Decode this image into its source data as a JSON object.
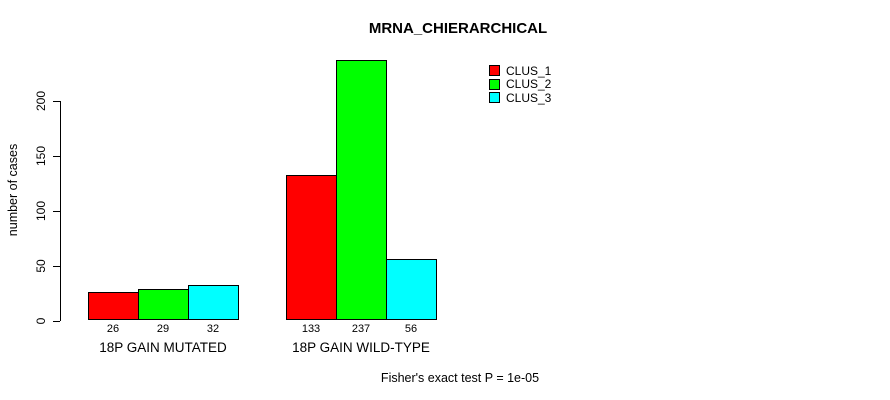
{
  "chart_data": {
    "type": "bar",
    "title": "MRNA_CHIERARCHICAL",
    "ylabel": "number of cases",
    "xlabel": "",
    "categories": [
      "18P GAIN MUTATED",
      "18P GAIN WILD-TYPE"
    ],
    "series": [
      {
        "name": "CLUS_1",
        "color": "#ff0000",
        "values": [
          26,
          133
        ]
      },
      {
        "name": "CLUS_2",
        "color": "#00ff00",
        "values": [
          29,
          237
        ]
      },
      {
        "name": "CLUS_3",
        "color": "#00ffff",
        "values": [
          32,
          56
        ]
      }
    ],
    "bar_value_labels": [
      [
        "26",
        "29",
        "32"
      ],
      [
        "133",
        "237",
        "56"
      ]
    ],
    "yticks": [
      0,
      50,
      100,
      150,
      200
    ],
    "ylim": [
      0,
      240
    ],
    "grid": false,
    "legend_position": "top-right",
    "legend_box": false,
    "bar_border_color": "#000000",
    "annotation": "Fisher's exact test P = 1e-05"
  }
}
